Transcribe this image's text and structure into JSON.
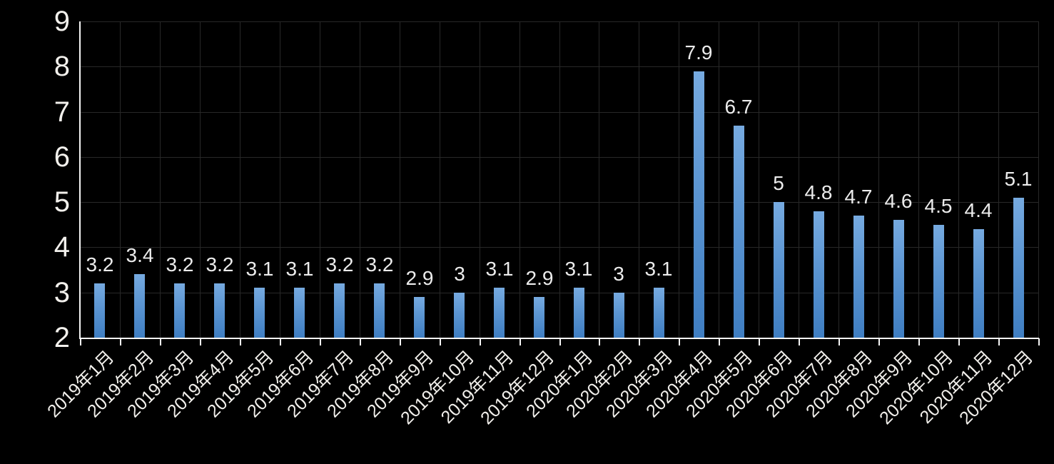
{
  "chart_data": {
    "type": "bar",
    "title": "",
    "xlabel": "",
    "ylabel": "",
    "categories": [
      "2019年1月",
      "2019年2月",
      "2019年3月",
      "2019年4月",
      "2019年5月",
      "2019年6月",
      "2019年7月",
      "2019年8月",
      "2019年9月",
      "2019年10月",
      "2019年11月",
      "2019年12月",
      "2020年1月",
      "2020年2月",
      "2020年3月",
      "2020年4月",
      "2020年5月",
      "2020年6月",
      "2020年7月",
      "2020年8月",
      "2020年9月",
      "2020年10月",
      "2020年11月",
      "2020年12月"
    ],
    "values": [
      3.2,
      3.4,
      3.2,
      3.2,
      3.1,
      3.1,
      3.2,
      3.2,
      2.9,
      3,
      3.1,
      2.9,
      3.1,
      3,
      3.1,
      7.9,
      6.7,
      5,
      4.8,
      4.7,
      4.6,
      4.5,
      4.4,
      5.1
    ],
    "data_labels": [
      "3.2",
      "3.4",
      "3.2",
      "3.2",
      "3.1",
      "3.1",
      "3.2",
      "3.2",
      "2.9",
      "3",
      "3.1",
      "2.9",
      "3.1",
      "3",
      "3.1",
      "7.9",
      "6.7",
      "5",
      "4.8",
      "4.7",
      "4.6",
      "4.5",
      "4.4",
      "5.1"
    ],
    "y_ticks": [
      "2",
      "3",
      "4",
      "5",
      "6",
      "7",
      "8",
      "9"
    ],
    "ylim": [
      2,
      9
    ],
    "grid": "horizontal and vertical gridlines",
    "legend": "none",
    "x_label_rotation_deg": 45
  },
  "colors": {
    "background": "#000000",
    "bar_gradient_top": "#76AAE0",
    "bar_gradient_bottom": "#3F7EC2",
    "gridline": "#282828",
    "axis_line": "#F5F5F5",
    "tick_label_text": "#F2F0EC",
    "data_label_text": "#ECECEC"
  }
}
